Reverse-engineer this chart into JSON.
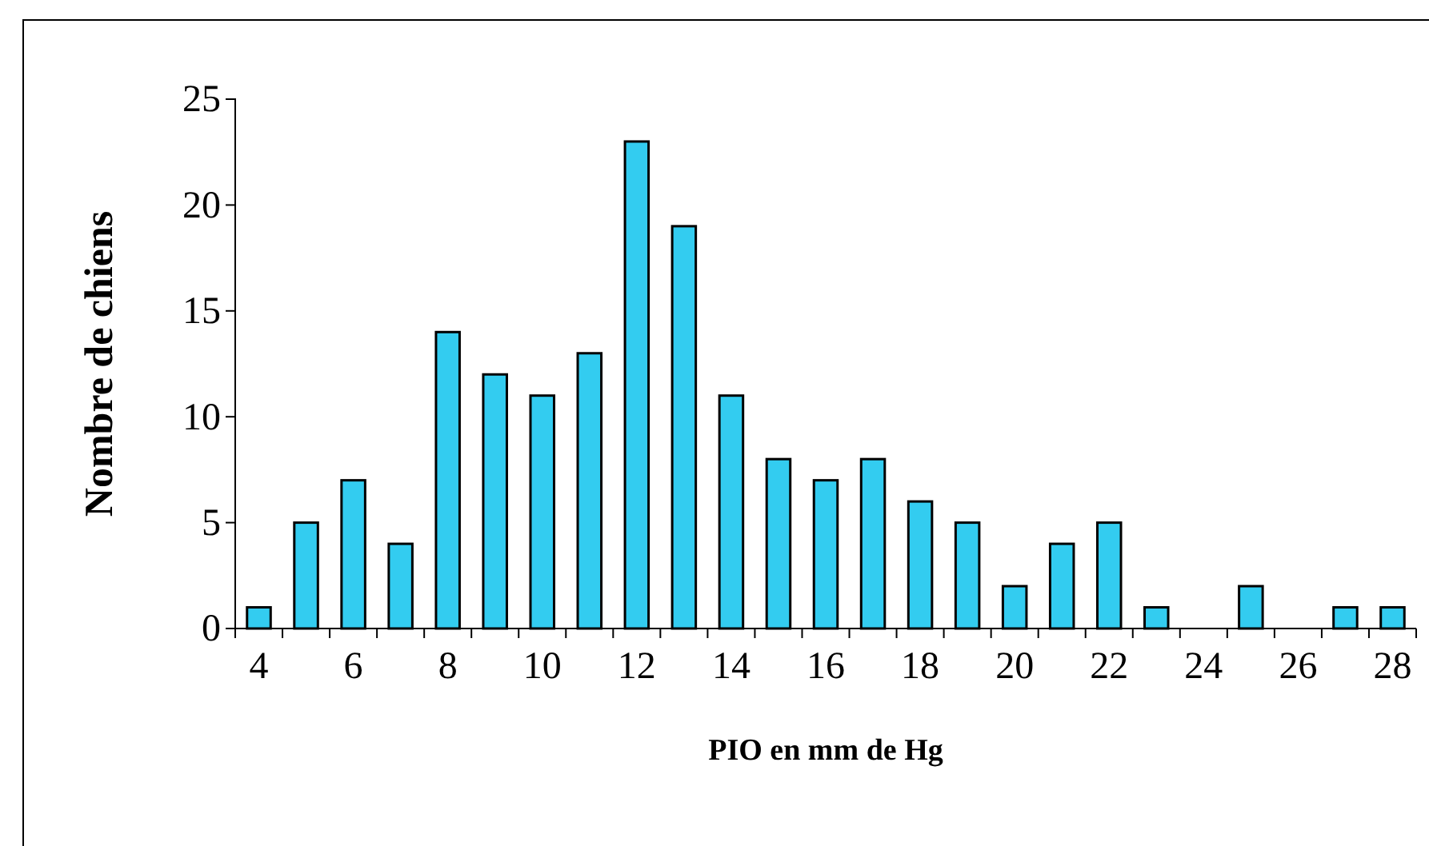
{
  "chart_data": {
    "type": "bar",
    "xlabel": "PIO en mm de Hg",
    "ylabel": "Nombre de chiens",
    "categories": [
      "4",
      null,
      "6",
      null,
      "8",
      null,
      "10",
      null,
      "12",
      null,
      "14",
      null,
      "16",
      null,
      "18",
      null,
      "20",
      null,
      "22",
      null,
      "24",
      null,
      "26",
      null,
      "28"
    ],
    "values": [
      1,
      5,
      7,
      4,
      14,
      12,
      11,
      13,
      23,
      19,
      11,
      8,
      7,
      8,
      6,
      5,
      2,
      4,
      5,
      1,
      0,
      2,
      0,
      1,
      1
    ],
    "color": "#33ccf0",
    "ylim": [
      0,
      25
    ],
    "yticks": [
      0,
      5,
      10,
      15,
      20,
      25
    ],
    "grid": false
  }
}
